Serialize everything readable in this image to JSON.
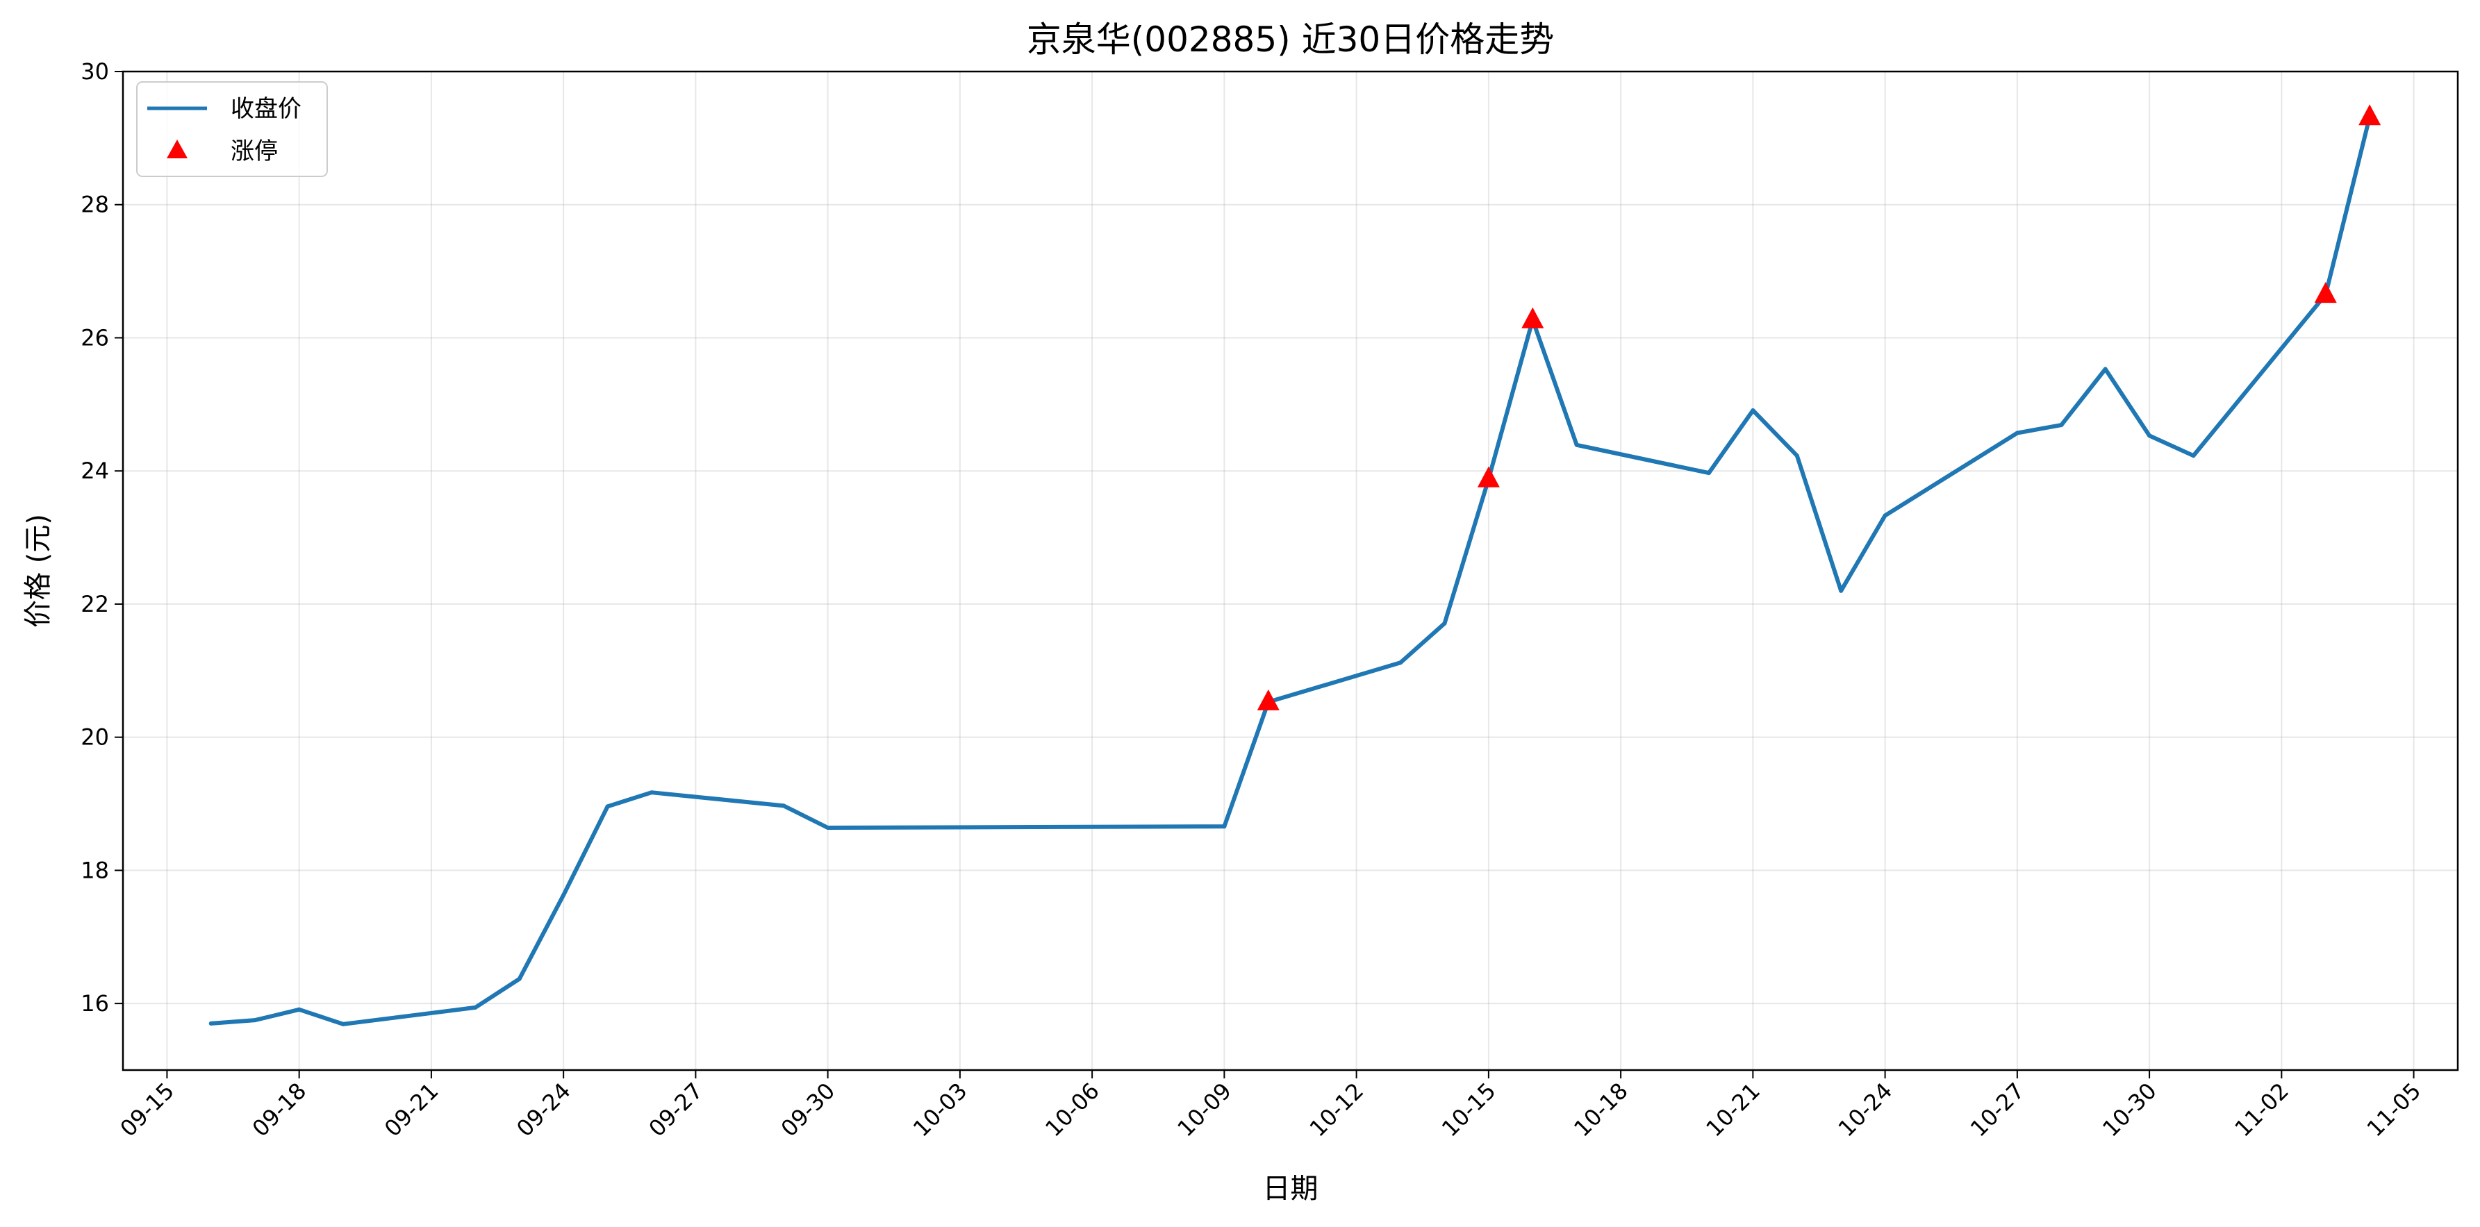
{
  "chart_data": {
    "type": "line",
    "title": "京泉华(002885) 近30日价格走势",
    "xlabel": "日期",
    "ylabel": "价格 (元)",
    "x_range": [
      "2025-09-14",
      "2025-11-06"
    ],
    "ylim": [
      15,
      30
    ],
    "grid": true,
    "legend_position": "top-left",
    "x_ticks": [
      "09-15",
      "09-18",
      "09-21",
      "09-24",
      "09-27",
      "09-30",
      "10-03",
      "10-06",
      "10-09",
      "10-12",
      "10-15",
      "10-18",
      "10-21",
      "10-24",
      "10-27",
      "10-30",
      "11-02",
      "11-05"
    ],
    "x_tick_dates": [
      "2025-09-15",
      "2025-09-18",
      "2025-09-21",
      "2025-09-24",
      "2025-09-27",
      "2025-09-30",
      "2025-10-03",
      "2025-10-06",
      "2025-10-09",
      "2025-10-12",
      "2025-10-15",
      "2025-10-18",
      "2025-10-21",
      "2025-10-24",
      "2025-10-27",
      "2025-10-30",
      "2025-11-02",
      "2025-11-05"
    ],
    "y_ticks": [
      16,
      18,
      20,
      22,
      24,
      26,
      28,
      30
    ],
    "series": [
      {
        "name": "收盘价",
        "kind": "line",
        "color": "#1f77b4",
        "points": [
          {
            "date": "2025-09-16",
            "value": 15.7
          },
          {
            "date": "2025-09-17",
            "value": 15.75
          },
          {
            "date": "2025-09-18",
            "value": 15.91
          },
          {
            "date": "2025-09-19",
            "value": 15.69
          },
          {
            "date": "2025-09-22",
            "value": 15.94
          },
          {
            "date": "2025-09-23",
            "value": 16.37
          },
          {
            "date": "2025-09-24",
            "value": 17.63
          },
          {
            "date": "2025-09-25",
            "value": 18.96
          },
          {
            "date": "2025-09-26",
            "value": 19.17
          },
          {
            "date": "2025-09-29",
            "value": 18.97
          },
          {
            "date": "2025-09-30",
            "value": 18.64
          },
          {
            "date": "2025-10-09",
            "value": 18.66
          },
          {
            "date": "2025-10-10",
            "value": 20.53
          },
          {
            "date": "2025-10-13",
            "value": 21.12
          },
          {
            "date": "2025-10-14",
            "value": 21.71
          },
          {
            "date": "2025-10-15",
            "value": 23.88
          },
          {
            "date": "2025-10-16",
            "value": 26.27
          },
          {
            "date": "2025-10-17",
            "value": 24.39
          },
          {
            "date": "2025-10-20",
            "value": 23.97
          },
          {
            "date": "2025-10-21",
            "value": 24.91
          },
          {
            "date": "2025-10-22",
            "value": 24.23
          },
          {
            "date": "2025-10-23",
            "value": 22.2
          },
          {
            "date": "2025-10-24",
            "value": 23.33
          },
          {
            "date": "2025-10-27",
            "value": 24.57
          },
          {
            "date": "2025-10-28",
            "value": 24.69
          },
          {
            "date": "2025-10-29",
            "value": 25.53
          },
          {
            "date": "2025-10-30",
            "value": 24.53
          },
          {
            "date": "2025-10-31",
            "value": 24.23
          },
          {
            "date": "2025-11-03",
            "value": 26.65
          },
          {
            "date": "2025-11-04",
            "value": 29.32
          }
        ]
      },
      {
        "name": "涨停",
        "kind": "scatter",
        "marker": "triangle-up",
        "color": "#ff0000",
        "points": [
          {
            "date": "2025-10-10",
            "value": 20.53
          },
          {
            "date": "2025-10-15",
            "value": 23.88
          },
          {
            "date": "2025-10-16",
            "value": 26.27
          },
          {
            "date": "2025-11-03",
            "value": 26.65
          },
          {
            "date": "2025-11-04",
            "value": 29.32
          }
        ]
      }
    ]
  }
}
